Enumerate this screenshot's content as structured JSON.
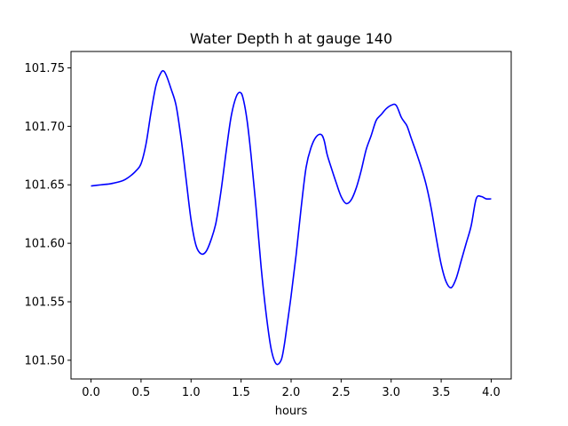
{
  "chart_data": {
    "type": "line",
    "title": "Water Depth h at gauge 140",
    "xlabel": "hours",
    "ylabel": "",
    "xlim": [
      -0.2,
      4.2
    ],
    "ylim": [
      101.484,
      101.764
    ],
    "xticks": [
      0.0,
      0.5,
      1.0,
      1.5,
      2.0,
      2.5,
      3.0,
      3.5,
      4.0
    ],
    "xtick_labels": [
      "0.0",
      "0.5",
      "1.0",
      "1.5",
      "2.0",
      "2.5",
      "3.0",
      "3.5",
      "4.0"
    ],
    "yticks": [
      101.5,
      101.55,
      101.6,
      101.65,
      101.7,
      101.75
    ],
    "ytick_labels": [
      "101.50",
      "101.55",
      "101.60",
      "101.65",
      "101.70",
      "101.75"
    ],
    "grid": false,
    "series": [
      {
        "color": "#0000ff",
        "x": [
          0.0,
          0.1,
          0.2,
          0.3,
          0.35,
          0.4,
          0.45,
          0.5,
          0.55,
          0.6,
          0.65,
          0.7,
          0.73,
          0.76,
          0.8,
          0.85,
          0.9,
          0.95,
          1.0,
          1.05,
          1.1,
          1.15,
          1.2,
          1.25,
          1.3,
          1.35,
          1.4,
          1.45,
          1.49,
          1.52,
          1.56,
          1.6,
          1.65,
          1.7,
          1.75,
          1.8,
          1.85,
          1.9,
          1.93,
          1.96,
          2.0,
          2.05,
          2.1,
          2.15,
          2.2,
          2.25,
          2.3,
          2.33,
          2.36,
          2.4,
          2.45,
          2.5,
          2.55,
          2.6,
          2.65,
          2.7,
          2.75,
          2.8,
          2.85,
          2.9,
          2.95,
          3.0,
          3.05,
          3.1,
          3.13,
          3.16,
          3.2,
          3.25,
          3.3,
          3.35,
          3.4,
          3.45,
          3.5,
          3.55,
          3.6,
          3.65,
          3.7,
          3.75,
          3.8,
          3.85,
          3.9,
          3.95,
          4.0
        ],
        "y": [
          101.649,
          101.65,
          101.651,
          101.653,
          101.655,
          101.658,
          101.662,
          101.668,
          101.685,
          101.712,
          101.735,
          101.746,
          101.747,
          101.742,
          101.732,
          101.718,
          101.69,
          101.655,
          101.62,
          101.598,
          101.591,
          101.593,
          101.603,
          101.618,
          101.645,
          101.678,
          101.708,
          101.725,
          101.729,
          101.724,
          101.705,
          101.675,
          101.63,
          101.58,
          101.54,
          101.51,
          101.497,
          101.5,
          101.512,
          101.53,
          101.555,
          101.59,
          101.63,
          101.665,
          101.682,
          101.691,
          101.693,
          101.688,
          101.676,
          101.665,
          101.652,
          101.64,
          101.634,
          101.637,
          101.647,
          101.662,
          101.68,
          101.692,
          101.705,
          101.71,
          101.715,
          101.718,
          101.718,
          101.708,
          101.704,
          101.7,
          101.69,
          101.678,
          101.665,
          101.65,
          101.63,
          101.605,
          101.582,
          101.567,
          101.562,
          101.57,
          101.585,
          101.6,
          101.615,
          101.638,
          101.64,
          101.638,
          101.638
        ]
      }
    ]
  }
}
